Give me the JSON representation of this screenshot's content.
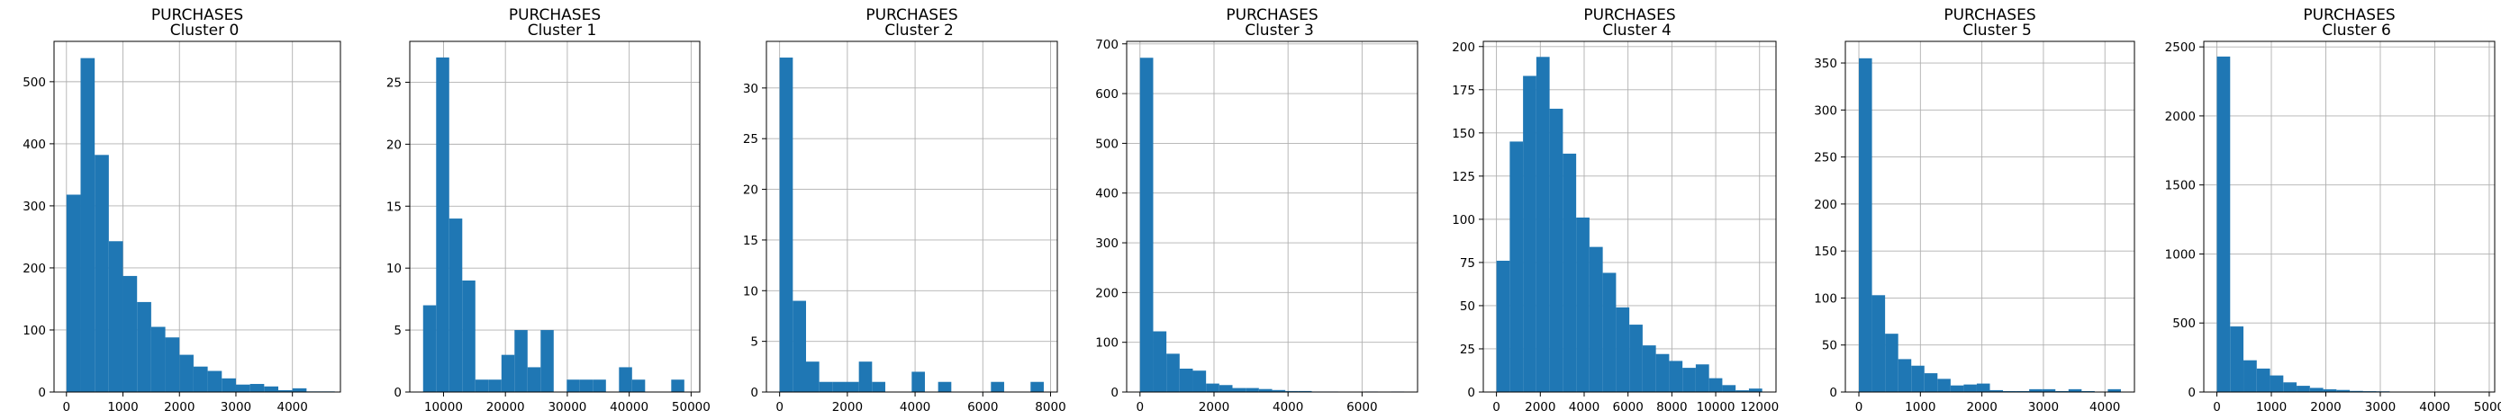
{
  "figure": {
    "bar_color": "#1f77b4",
    "grid_color": "#b0b0b0",
    "background": "#ffffff"
  },
  "chart_data": [
    {
      "type": "bar",
      "title_line1": "PURCHASES",
      "title_line2": "Cluster 0",
      "grid": true,
      "xlim": [
        -220,
        4850
      ],
      "ylim": [
        0,
        565
      ],
      "xticks": [
        0,
        1000,
        2000,
        3000,
        4000
      ],
      "xtick_labels": [
        "0",
        "1000",
        "2000",
        "3000",
        "4000"
      ],
      "yticks": [
        0,
        100,
        200,
        300,
        400,
        500
      ],
      "ytick_labels": [
        "0",
        "100",
        "200",
        "300",
        "400",
        "500"
      ],
      "bin_edges": [
        0,
        250,
        500,
        750,
        1000,
        1250,
        1500,
        1750,
        2000,
        2250,
        2500,
        2750,
        3000,
        3250,
        3500,
        3750,
        4000,
        4250,
        4500,
        4750
      ],
      "values": [
        318,
        538,
        382,
        243,
        187,
        145,
        105,
        88,
        60,
        41,
        34,
        22,
        12,
        13,
        9,
        3,
        6,
        1,
        1
      ]
    },
    {
      "type": "bar",
      "title_line1": "PURCHASES",
      "title_line2": "Cluster 1",
      "grid": true,
      "xlim": [
        4550,
        51400
      ],
      "ylim": [
        0,
        28.3
      ],
      "xticks": [
        10000,
        20000,
        30000,
        40000,
        50000
      ],
      "xtick_labels": [
        "10000",
        "20000",
        "30000",
        "40000",
        "50000"
      ],
      "yticks": [
        0,
        5,
        10,
        15,
        20,
        25
      ],
      "ytick_labels": [
        "0",
        "5",
        "10",
        "15",
        "20",
        "25"
      ],
      "bin_edges": [
        6700,
        8810,
        10920,
        13030,
        15140,
        17250,
        19360,
        21470,
        23580,
        25690,
        27800,
        29910,
        32020,
        34130,
        36240,
        38350,
        40460,
        42570,
        44680,
        46790,
        48900
      ],
      "values": [
        7,
        27,
        14,
        9,
        1,
        1,
        3,
        5,
        2,
        5,
        0,
        1,
        1,
        1,
        0,
        2,
        1,
        0,
        0,
        1
      ]
    },
    {
      "type": "bar",
      "title_line1": "PURCHASES",
      "title_line2": "Cluster 2",
      "grid": true,
      "xlim": [
        -390,
        8200
      ],
      "ylim": [
        0,
        34.6
      ],
      "xticks": [
        0,
        2000,
        4000,
        6000,
        8000
      ],
      "xtick_labels": [
        "0",
        "2000",
        "4000",
        "6000",
        "8000"
      ],
      "yticks": [
        0,
        5,
        10,
        15,
        20,
        25,
        30
      ],
      "ytick_labels": [
        "0",
        "5",
        "10",
        "15",
        "20",
        "25",
        "30"
      ],
      "bin_edges": [
        0,
        390,
        780,
        1170,
        1560,
        1950,
        2340,
        2730,
        3120,
        3510,
        3900,
        4290,
        4680,
        5070,
        5460,
        5850,
        6240,
        6630,
        7020,
        7410,
        7800
      ],
      "values": [
        33,
        9,
        3,
        1,
        1,
        1,
        3,
        1,
        0,
        0,
        2,
        0,
        1,
        0,
        0,
        0,
        1,
        0,
        0,
        1
      ]
    },
    {
      "type": "bar",
      "title_line1": "PURCHASES",
      "title_line2": "Cluster 3",
      "grid": true,
      "xlim": [
        -360,
        7500
      ],
      "ylim": [
        0,
        705
      ],
      "xticks": [
        0,
        2000,
        4000,
        6000
      ],
      "xtick_labels": [
        "0",
        "2000",
        "4000",
        "6000"
      ],
      "yticks": [
        0,
        100,
        200,
        300,
        400,
        500,
        600,
        700
      ],
      "ytick_labels": [
        "0",
        "100",
        "200",
        "300",
        "400",
        "500",
        "600",
        "700"
      ],
      "bin_edges": [
        0,
        357,
        714,
        1071,
        1428,
        1785,
        2142,
        2499,
        2856,
        3213,
        3570,
        3927,
        4284,
        4641,
        4998,
        5355,
        5712,
        6069,
        6426,
        6783,
        7140
      ],
      "values": [
        672,
        122,
        77,
        47,
        43,
        17,
        14,
        8,
        8,
        6,
        4,
        2,
        2,
        1,
        1,
        0,
        0,
        1,
        0,
        1
      ]
    },
    {
      "type": "bar",
      "title_line1": "PURCHASES",
      "title_line2": "Cluster 4",
      "grid": true,
      "xlim": [
        -600,
        12750
      ],
      "ylim": [
        0,
        203
      ],
      "xticks": [
        0,
        2000,
        4000,
        6000,
        8000,
        10000,
        12000
      ],
      "xtick_labels": [
        "0",
        "2000",
        "4000",
        "6000",
        "8000",
        "10000",
        "12000"
      ],
      "yticks": [
        0,
        25,
        50,
        75,
        100,
        125,
        150,
        175,
        200
      ],
      "ytick_labels": [
        "0",
        "25",
        "50",
        "75",
        "100",
        "125",
        "150",
        "175",
        "200"
      ],
      "bin_edges": [
        0,
        606,
        1212,
        1818,
        2424,
        3030,
        3636,
        4242,
        4848,
        5454,
        6060,
        6666,
        7272,
        7878,
        8484,
        9090,
        9696,
        10302,
        10908,
        11514,
        12120
      ],
      "values": [
        76,
        145,
        183,
        194,
        164,
        138,
        101,
        84,
        69,
        49,
        39,
        27,
        22,
        18,
        14,
        16,
        8,
        4,
        1,
        2
      ]
    },
    {
      "type": "bar",
      "title_line1": "PURCHASES",
      "title_line2": "Cluster 5",
      "grid": true,
      "xlim": [
        -220,
        4480
      ],
      "ylim": [
        0,
        373
      ],
      "xticks": [
        0,
        1000,
        2000,
        3000,
        4000
      ],
      "xtick_labels": [
        "0",
        "1000",
        "2000",
        "3000",
        "4000"
      ],
      "yticks": [
        0,
        50,
        100,
        150,
        200,
        250,
        300,
        350
      ],
      "ytick_labels": [
        "0",
        "50",
        "100",
        "150",
        "200",
        "250",
        "300",
        "350"
      ],
      "bin_edges": [
        0,
        213,
        426,
        639,
        852,
        1065,
        1278,
        1491,
        1704,
        1917,
        2130,
        2343,
        2556,
        2769,
        2982,
        3195,
        3408,
        3621,
        3834,
        4047,
        4260
      ],
      "values": [
        355,
        103,
        62,
        35,
        28,
        20,
        14,
        7,
        8,
        9,
        2,
        1,
        1,
        3,
        3,
        1,
        3,
        1,
        0,
        3
      ]
    },
    {
      "type": "bar",
      "title_line1": "PURCHASES",
      "title_line2": "Cluster 6",
      "grid": true,
      "xlim": [
        -240,
        5100
      ],
      "ylim": [
        0,
        2540
      ],
      "xticks": [
        0,
        1000,
        2000,
        3000,
        4000,
        5000
      ],
      "xtick_labels": [
        "0",
        "1000",
        "2000",
        "3000",
        "4000",
        "5000"
      ],
      "yticks": [
        0,
        500,
        1000,
        1500,
        2000,
        2500
      ],
      "ytick_labels": [
        "0",
        "500",
        "1000",
        "1500",
        "2000",
        "2500"
      ],
      "bin_edges": [
        0,
        244,
        488,
        732,
        976,
        1220,
        1464,
        1708,
        1952,
        2196,
        2440,
        2684,
        2928,
        3172,
        3416,
        3660,
        3904,
        4148,
        4392,
        4636,
        4880
      ],
      "values": [
        2430,
        475,
        230,
        170,
        120,
        70,
        45,
        30,
        20,
        15,
        8,
        6,
        5,
        3,
        2,
        2,
        1,
        1,
        0,
        1
      ]
    }
  ]
}
